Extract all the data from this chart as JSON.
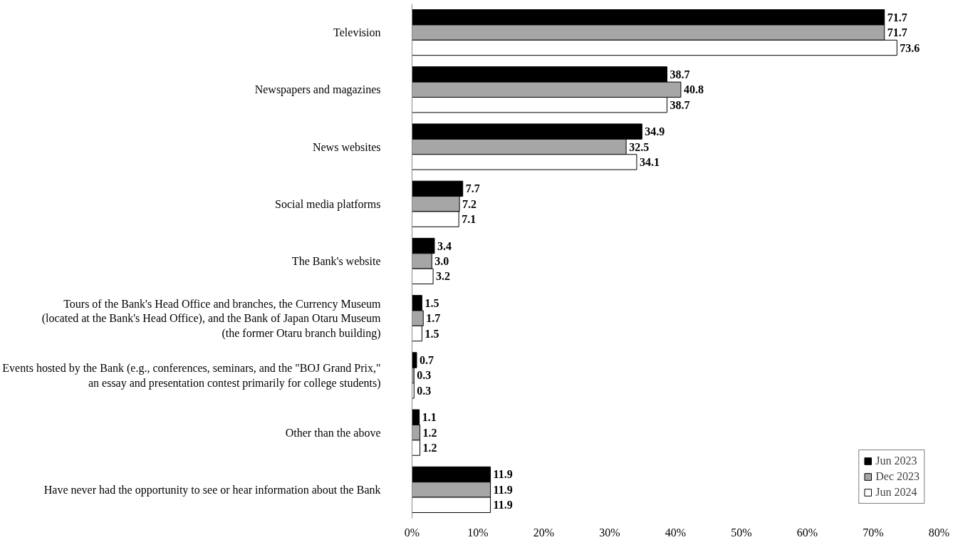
{
  "chart_data": {
    "type": "bar",
    "orientation": "horizontal",
    "categories": [
      "Television",
      "Newspapers and magazines",
      "News websites",
      "Social media platforms",
      "The Bank's website",
      "Tours of the Bank's Head Office and branches, the Currency Museum\n(located at the Bank's Head Office), and the Bank of Japan Otaru Museum\n(the former Otaru branch building)",
      "Events hosted by the Bank (e.g., conferences, seminars, and the \"BOJ Grand Prix,\"\nan essay and presentation contest primarily for college students)",
      "Other than the above",
      "Have never had the opportunity to see or hear information about the Bank"
    ],
    "series": [
      {
        "name": "Jun 2023",
        "color": "#000000",
        "values": [
          71.7,
          38.7,
          34.9,
          7.7,
          3.4,
          1.5,
          0.7,
          1.1,
          11.9
        ],
        "value_labels": [
          "71.7",
          "38.7",
          "34.9",
          "7.7",
          "3.4",
          "1.5",
          "0.7",
          "1.1",
          "11.9"
        ]
      },
      {
        "name": "Dec 2023",
        "color": "#a6a6a6",
        "values": [
          71.7,
          40.8,
          32.5,
          7.2,
          3.0,
          1.7,
          0.3,
          1.2,
          11.9
        ],
        "value_labels": [
          "71.7",
          "40.8",
          "32.5",
          "7.2",
          "3.0",
          "1.7",
          "0.3",
          "1.2",
          "11.9"
        ]
      },
      {
        "name": "Jun 2024",
        "color": "#ffffff",
        "values": [
          73.6,
          38.7,
          34.1,
          7.1,
          3.2,
          1.5,
          0.3,
          1.2,
          11.9
        ],
        "value_labels": [
          "73.6",
          "38.7",
          "34.1",
          "7.1",
          "3.2",
          "1.5",
          "0.3",
          "1.2",
          "11.9"
        ]
      }
    ],
    "xlim": [
      0,
      80
    ],
    "xticks": [
      {
        "value": 0,
        "label": "0%"
      },
      {
        "value": 10,
        "label": "10%"
      },
      {
        "value": 20,
        "label": "20%"
      },
      {
        "value": 30,
        "label": "30%"
      },
      {
        "value": 40,
        "label": "40%"
      },
      {
        "value": 50,
        "label": "50%"
      },
      {
        "value": 60,
        "label": "60%"
      },
      {
        "value": 70,
        "label": "70%"
      },
      {
        "value": 80,
        "label": "80%"
      }
    ],
    "legend": "bottom right",
    "grid": false
  }
}
